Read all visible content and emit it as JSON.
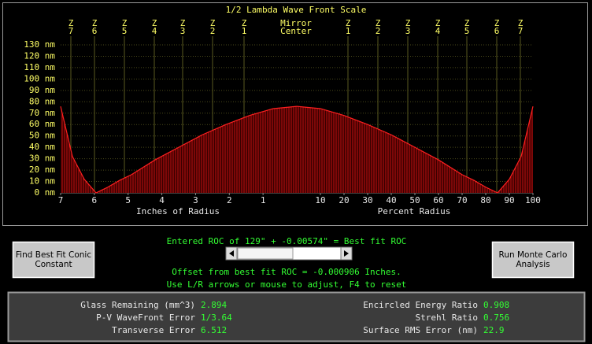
{
  "chart_data": {
    "type": "line",
    "title": "1/2 Lambda Wave Front Scale",
    "zones": [
      {
        "z": "Z",
        "n": "7"
      },
      {
        "z": "Z",
        "n": "6"
      },
      {
        "z": "Z",
        "n": "5"
      },
      {
        "z": "Z",
        "n": "4"
      },
      {
        "z": "Z",
        "n": "3"
      },
      {
        "z": "Z",
        "n": "2"
      },
      {
        "z": "Z",
        "n": "1"
      },
      {
        "z": "Z",
        "n": "1"
      },
      {
        "z": "Z",
        "n": "2"
      },
      {
        "z": "Z",
        "n": "3"
      },
      {
        "z": "Z",
        "n": "4"
      },
      {
        "z": "Z",
        "n": "5"
      },
      {
        "z": "Z",
        "n": "6"
      },
      {
        "z": "Z",
        "n": "7"
      }
    ],
    "center_label": [
      "Mirror",
      "Center"
    ],
    "ylim": [
      0,
      130
    ],
    "yticks": [
      {
        "value": 0,
        "label": "0 nm"
      },
      {
        "value": 10,
        "label": "10 nm"
      },
      {
        "value": 20,
        "label": "20 nm"
      },
      {
        "value": 30,
        "label": "30 nm"
      },
      {
        "value": 40,
        "label": "40 nm"
      },
      {
        "value": 50,
        "label": "50 nm"
      },
      {
        "value": 60,
        "label": "60 nm"
      },
      {
        "value": 70,
        "label": "70 nm"
      },
      {
        "value": 80,
        "label": "80 nm"
      },
      {
        "value": 90,
        "label": "90 nm"
      },
      {
        "value": 100,
        "label": "100 nm"
      },
      {
        "value": 110,
        "label": "110 nm"
      },
      {
        "value": 120,
        "label": "120 nm"
      },
      {
        "value": 130,
        "label": "130 nm"
      }
    ],
    "x_inches": {
      "label": "Inches of Radius",
      "lim": [
        7,
        0
      ],
      "ticks": [
        7,
        6,
        5,
        4,
        3,
        2,
        1
      ]
    },
    "x_percent": {
      "label": "Percent Radius",
      "lim": [
        0,
        100
      ],
      "ticks": [
        10,
        20,
        30,
        40,
        50,
        60,
        70,
        80,
        90,
        100
      ]
    },
    "x": [
      0,
      10,
      20,
      30,
      40,
      50,
      60,
      70,
      75,
      80,
      85,
      90,
      95,
      100
    ],
    "values": [
      76,
      74,
      68,
      60,
      51,
      40,
      29,
      16,
      11,
      5,
      0,
      12,
      32,
      76
    ],
    "color": "#ff2020",
    "grid": true
  },
  "controls": {
    "roc_text": "Entered ROC of 129\" + -0.00574\" = Best fit ROC",
    "offset_text": "Offset from best fit ROC = -0.000906 Inches.",
    "help_text": "Use L/R arrows or mouse to adjust, F4 to reset",
    "left_button": [
      "Find Best Fit Conic",
      "Constant"
    ],
    "right_button": [
      "Run Monte Carlo",
      "Analysis"
    ]
  },
  "stats": [
    {
      "label": "Glass Remaining (mm^3)",
      "value": "2.894"
    },
    {
      "label": "P-V WaveFront Error",
      "value": "1/3.64"
    },
    {
      "label": "Transverse Error",
      "value": "6.512"
    },
    {
      "label": "Encircled Energy Ratio",
      "value": "0.908"
    },
    {
      "label": "Strehl Ratio",
      "value": "0.756"
    },
    {
      "label": "Surface RMS Error (nm)",
      "value": "22.9"
    }
  ]
}
